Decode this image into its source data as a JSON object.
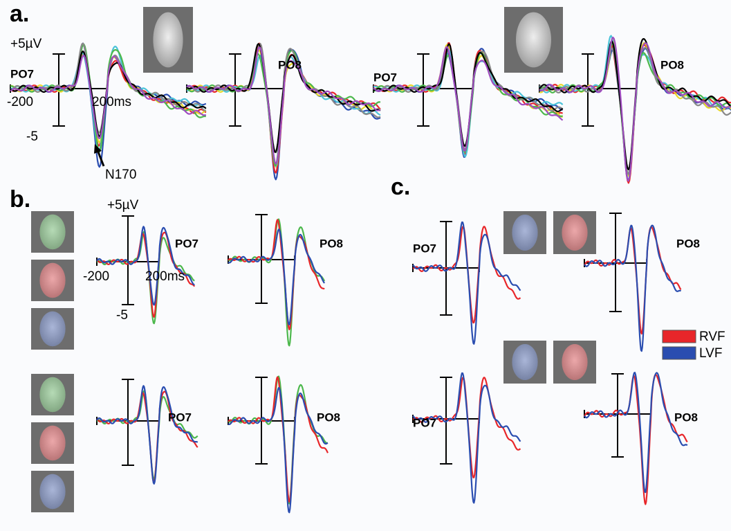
{
  "figure": {
    "a": {
      "label": "a.",
      "y_top": "+5µV",
      "y_bottom": "-5",
      "x_left": "-200",
      "x_right": "200ms",
      "annotation": "N170",
      "plots": [
        "PO7",
        "PO8",
        "PO7",
        "PO8"
      ]
    },
    "b": {
      "label": "b.",
      "y_top": "+5µV",
      "y_bottom": "-5",
      "x_left": "-200",
      "x_right": "200ms",
      "plots": [
        "PO7",
        "PO8",
        "PO7",
        "PO8"
      ]
    },
    "c": {
      "label": "c.",
      "plots": [
        "PO7",
        "PO8",
        "PO7",
        "PO8"
      ],
      "legend": [
        "RVF",
        "LVF"
      ]
    }
  }
}
